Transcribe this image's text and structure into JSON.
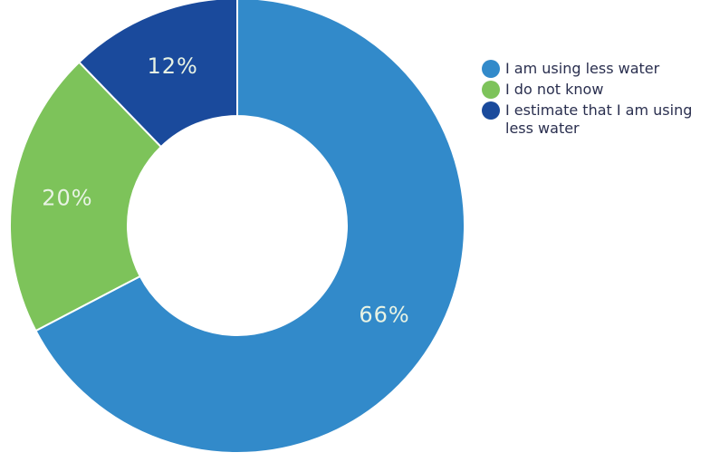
{
  "chart_data": {
    "type": "pie",
    "donut": true,
    "slices": [
      {
        "label": "I am using less water",
        "value": 66,
        "display": "66%",
        "color": "#328ACA"
      },
      {
        "label": "I do not know",
        "value": 20,
        "display": "20%",
        "color": "#7DC35A"
      },
      {
        "label": "I estimate that I am using less water",
        "value": 12,
        "display": "12%",
        "color": "#1A4A9C"
      }
    ],
    "legend_position": "right",
    "start_angle": "top",
    "direction": "clockwise"
  }
}
